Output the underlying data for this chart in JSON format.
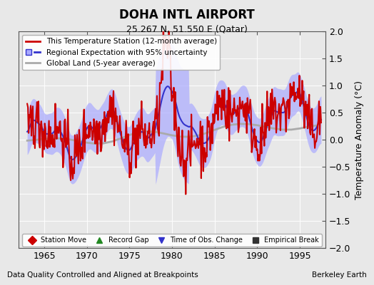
{
  "title": "DOHA INTL AIRPORT",
  "subtitle": "25.267 N, 51.550 E (Qatar)",
  "xlabel_bottom": "Data Quality Controlled and Aligned at Breakpoints",
  "xlabel_right": "Berkeley Earth",
  "ylabel": "Temperature Anomaly (°C)",
  "ylim": [
    -2,
    2
  ],
  "xlim": [
    1962,
    1998
  ],
  "xticks": [
    1965,
    1970,
    1975,
    1980,
    1985,
    1990,
    1995
  ],
  "yticks": [
    -2,
    -1.5,
    -1,
    -0.5,
    0,
    0.5,
    1,
    1.5,
    2
  ],
  "bg_color": "#e8e8e8",
  "plot_bg_color": "#e8e8e8",
  "station_color": "#cc0000",
  "regional_color": "#3333cc",
  "regional_fill_color": "#aaaaff",
  "global_color": "#aaaaaa",
  "legend_items": [
    {
      "label": "This Temperature Station (12-month average)",
      "color": "#cc0000",
      "lw": 2
    },
    {
      "label": "Regional Expectation with 95% uncertainty",
      "color": "#3333cc",
      "lw": 2
    },
    {
      "label": "Global Land (5-year average)",
      "color": "#aaaaaa",
      "lw": 2
    }
  ],
  "marker_items": [
    {
      "label": "Station Move",
      "color": "#cc0000",
      "marker": "D"
    },
    {
      "label": "Record Gap",
      "color": "#228822",
      "marker": "^"
    },
    {
      "label": "Time of Obs. Change",
      "color": "#3333cc",
      "marker": "v"
    },
    {
      "label": "Empirical Break",
      "color": "#333333",
      "marker": "s"
    }
  ]
}
